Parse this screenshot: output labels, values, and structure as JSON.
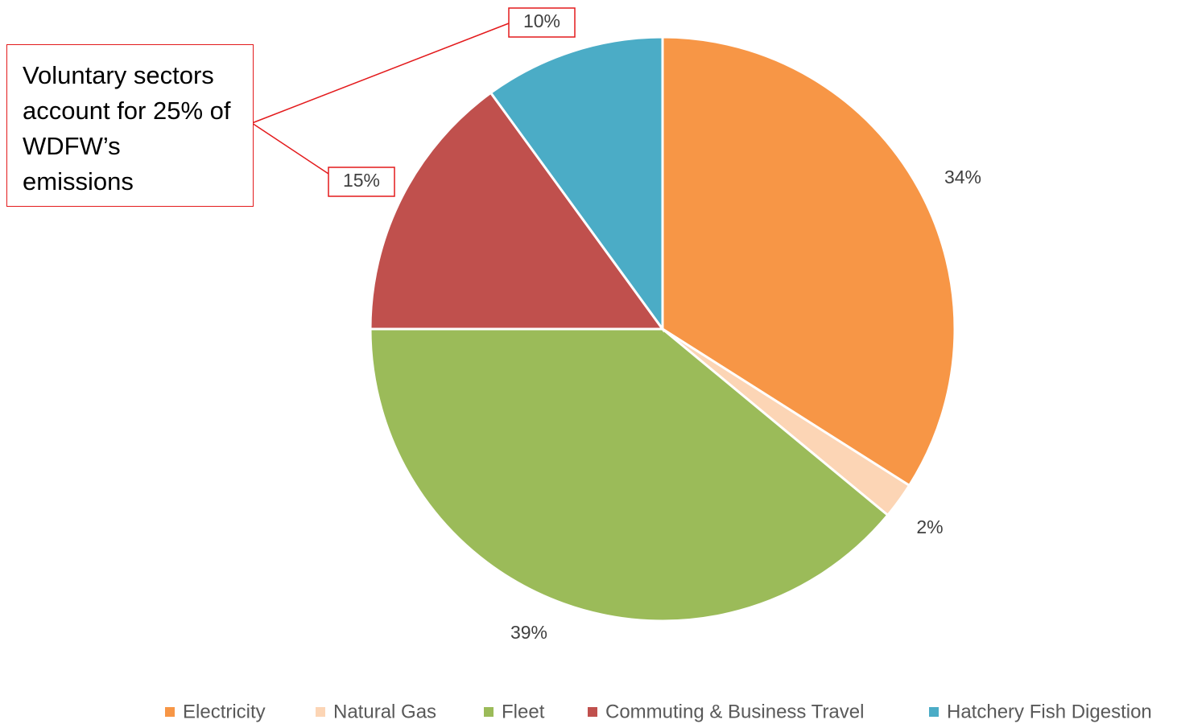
{
  "chart_data": {
    "type": "pie",
    "categories": [
      "Electricity",
      "Natural Gas",
      "Fleet",
      "Commuting & Business Travel",
      "Hatchery Fish Digestion"
    ],
    "values": [
      34,
      2,
      39,
      15,
      10
    ],
    "value_labels": [
      "34%",
      "2%",
      "39%",
      "15%",
      "10%"
    ],
    "colors": [
      "#f79646",
      "#fcd5b5",
      "#9bbb59",
      "#c0504d",
      "#4bacc6"
    ],
    "annotation": "Voluntary sectors account for 25% of WDFW’s emissions",
    "legend": "bottom"
  }
}
